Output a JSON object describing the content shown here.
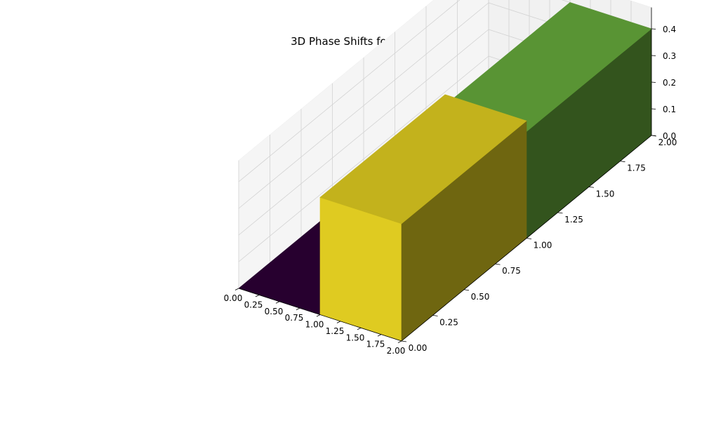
{
  "chart_data": {
    "type": "bar3d",
    "title": "3D Phase Shifts for SLSQP",
    "xlabel": "",
    "ylabel": "",
    "zlabel": "",
    "x_ticks": [
      "0.00",
      "0.25",
      "0.50",
      "0.75",
      "1.00",
      "1.25",
      "1.50",
      "1.75",
      "2.00"
    ],
    "y_ticks": [
      "0.00",
      "0.25",
      "0.50",
      "0.75",
      "1.00",
      "1.25",
      "1.50",
      "1.75",
      "2.00"
    ],
    "z_ticks": [
      "0.0",
      "0.1",
      "0.2",
      "0.3",
      "0.4"
    ],
    "xlim": [
      0,
      2
    ],
    "ylim": [
      0,
      2
    ],
    "zlim": [
      0,
      0.48
    ],
    "colormap": "viridis",
    "bars": [
      {
        "x": 0,
        "y": 0,
        "dx": 1,
        "dy": 1,
        "z": 0.0,
        "color": "#440154"
      },
      {
        "x": 0,
        "y": 1,
        "dx": 1,
        "dy": 1,
        "z": 0.0,
        "color": "#440154"
      },
      {
        "x": 1,
        "y": 1,
        "dx": 1,
        "dy": 1,
        "z": 0.4,
        "color": "#74c043"
      },
      {
        "x": 1,
        "y": 0,
        "dx": 1,
        "dy": 1,
        "z": 0.44,
        "color": "#fde725"
      }
    ],
    "grid": true
  }
}
